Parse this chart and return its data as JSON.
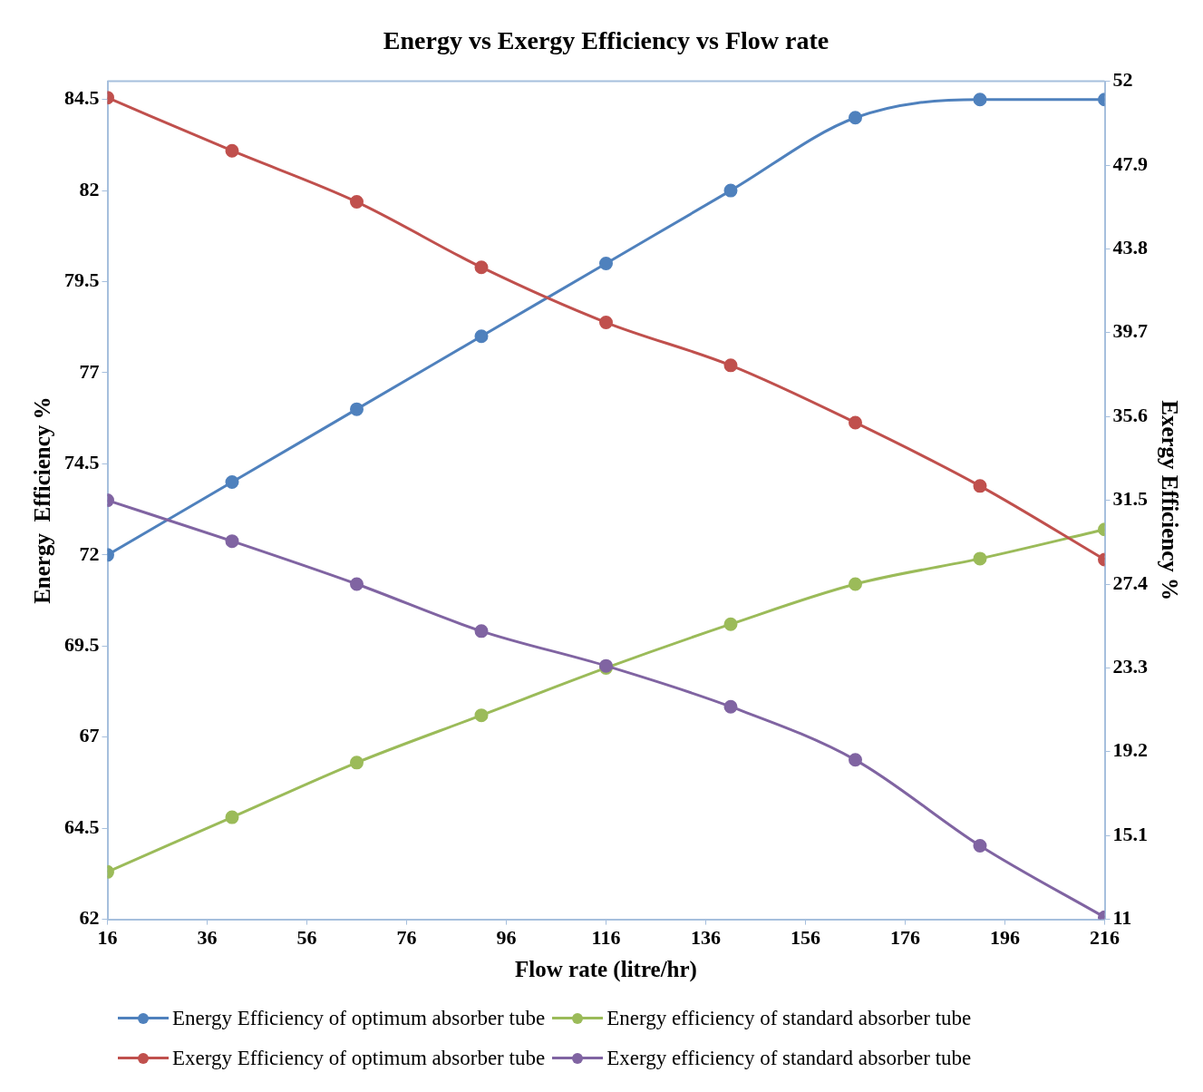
{
  "chart_data": {
    "type": "line",
    "title": "Energy vs Exergy Efficiency vs Flow rate",
    "xlabel": "Flow rate (litre/hr)",
    "ylabel": "Energy  Efficiency %",
    "y2label": "Exergy Efficiency %",
    "x": [
      16,
      41,
      66,
      91,
      116,
      141,
      166,
      191,
      216
    ],
    "xlim": [
      16,
      216
    ],
    "xticks": [
      16,
      36,
      56,
      76,
      96,
      116,
      136,
      156,
      176,
      196,
      216
    ],
    "ylim": [
      62,
      85
    ],
    "yticks": [
      62,
      64.5,
      67,
      69.5,
      72,
      74.5,
      77,
      79.5,
      82,
      84.5
    ],
    "y2lim": [
      11,
      52
    ],
    "y2ticks": [
      11,
      15.1,
      19.2,
      23.3,
      27.4,
      31.5,
      35.6,
      39.7,
      43.8,
      47.9,
      52
    ],
    "grid": false,
    "legend": "bottom",
    "marker": "circle",
    "series": [
      {
        "name": "Energy Efficiency of optimum absorber tube",
        "color": "#4f81bd",
        "values": [
          72.0,
          74.0,
          76.0,
          78.0,
          80.0,
          82.0,
          84.0,
          84.5,
          84.5
        ]
      },
      {
        "name": "Energy efficiency of standard absorber tube",
        "color": "#9bbb59",
        "values": [
          63.3,
          64.8,
          66.3,
          67.6,
          68.9,
          70.1,
          71.2,
          71.9,
          72.7
        ]
      },
      {
        "name": "Exergy Efficiency of optimum absorber tube",
        "color": "#c0504d",
        "axis": "y2",
        "values": [
          51.2,
          48.6,
          46.1,
          42.9,
          40.2,
          38.1,
          35.3,
          32.2,
          28.6
        ]
      },
      {
        "name": "Exergy efficiency of standard absorber tube",
        "color": "#8064a2",
        "axis": "y2",
        "values": [
          31.5,
          29.5,
          27.4,
          25.1,
          23.4,
          21.4,
          18.8,
          14.6,
          11.1
        ]
      }
    ]
  }
}
